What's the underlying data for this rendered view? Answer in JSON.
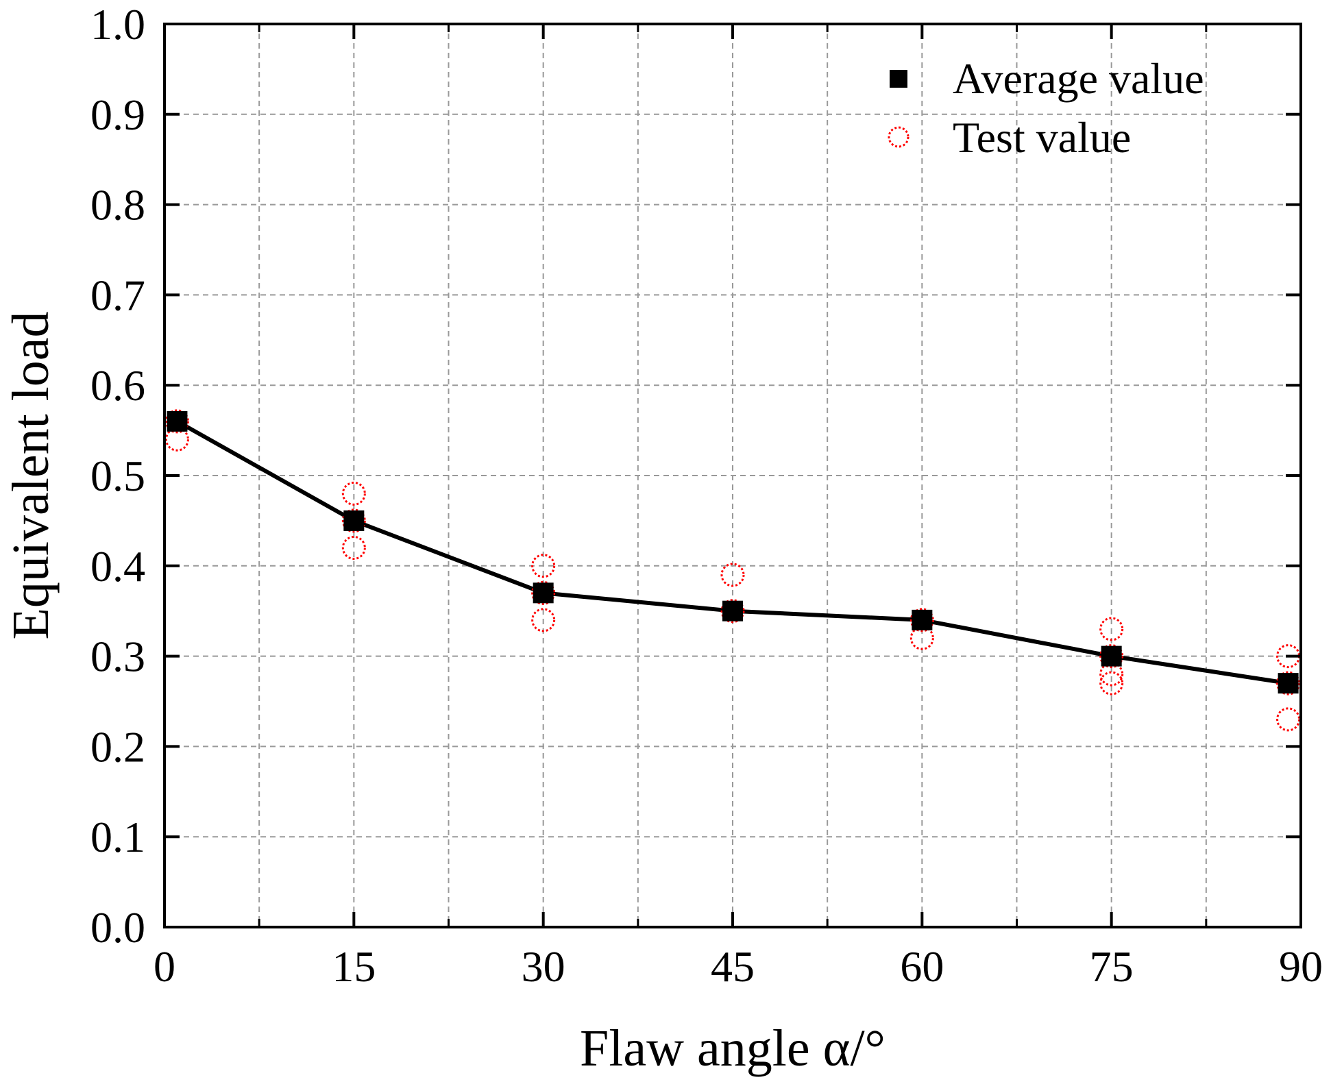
{
  "chart_data": {
    "type": "scatter",
    "title": "",
    "xlabel": "Flaw angle α/°",
    "ylabel": "Equivalent load",
    "xlim": [
      0,
      90
    ],
    "ylim": [
      0.0,
      1.0
    ],
    "grid": true,
    "legend_position": "top-right",
    "x_ticks": [
      0,
      15,
      30,
      45,
      60,
      75,
      90
    ],
    "x_tick_labels": [
      "0",
      "15",
      "30",
      "45",
      "60",
      "75",
      "90"
    ],
    "y_ticks": [
      0.0,
      0.1,
      0.2,
      0.3,
      0.4,
      0.5,
      0.6,
      0.7,
      0.8,
      0.9,
      1.0
    ],
    "y_tick_labels": [
      "0.0",
      "0.1",
      "0.2",
      "0.3",
      "0.4",
      "0.5",
      "0.6",
      "0.7",
      "0.8",
      "0.9",
      "1.0"
    ],
    "series": [
      {
        "name": "Average value",
        "marker": "square",
        "line": true,
        "color": "#000000",
        "x": [
          1,
          15,
          30,
          45,
          60,
          75,
          89
        ],
        "y": [
          0.56,
          0.45,
          0.37,
          0.35,
          0.34,
          0.3,
          0.27
        ]
      },
      {
        "name": "Test value",
        "marker": "circle",
        "line": false,
        "color": "#ff0000",
        "points": [
          {
            "x": 1,
            "y": 0.54
          },
          {
            "x": 1,
            "y": 0.56
          },
          {
            "x": 15,
            "y": 0.42
          },
          {
            "x": 15,
            "y": 0.45
          },
          {
            "x": 15,
            "y": 0.48
          },
          {
            "x": 30,
            "y": 0.4
          },
          {
            "x": 30,
            "y": 0.37
          },
          {
            "x": 30,
            "y": 0.34
          },
          {
            "x": 45,
            "y": 0.39
          },
          {
            "x": 45,
            "y": 0.35
          },
          {
            "x": 60,
            "y": 0.34
          },
          {
            "x": 60,
            "y": 0.32
          },
          {
            "x": 75,
            "y": 0.33
          },
          {
            "x": 75,
            "y": 0.3
          },
          {
            "x": 75,
            "y": 0.28
          },
          {
            "x": 75,
            "y": 0.27
          },
          {
            "x": 89,
            "y": 0.3
          },
          {
            "x": 89,
            "y": 0.27
          },
          {
            "x": 89,
            "y": 0.23
          }
        ]
      }
    ]
  },
  "colors": {
    "average": "#000000",
    "test": "#ff0000",
    "grid": "#999999",
    "axis": "#000000"
  }
}
